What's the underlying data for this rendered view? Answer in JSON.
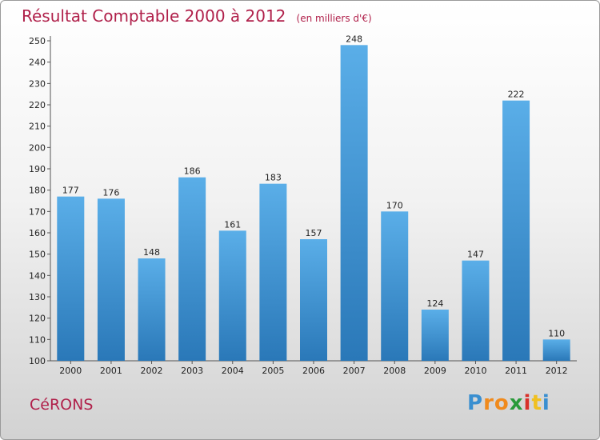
{
  "chart_data": {
    "type": "bar",
    "title": "Résultat Comptable 2000 à 2012",
    "subtitle": "(en milliers d'€)",
    "categories": [
      "2000",
      "2001",
      "2002",
      "2003",
      "2004",
      "2005",
      "2006",
      "2007",
      "2008",
      "2009",
      "2010",
      "2011",
      "2012"
    ],
    "values": [
      177,
      176,
      148,
      186,
      161,
      183,
      157,
      248,
      170,
      124,
      147,
      222,
      110
    ],
    "ylim": [
      100,
      250
    ],
    "yticks": [
      100,
      110,
      120,
      130,
      140,
      150,
      160,
      170,
      180,
      190,
      200,
      210,
      220,
      230,
      240,
      250
    ],
    "xlabel": "",
    "ylabel": "",
    "grid": false,
    "bar_color_top": "#5aaee8",
    "bar_color_bottom": "#2a78b8"
  },
  "commune": "CéRONS",
  "logo": {
    "letters": [
      "P",
      "r",
      "o",
      "x",
      "i",
      "t",
      "i"
    ],
    "colors": [
      "#3a8fd0",
      "#f08a1c",
      "#f08a1c",
      "#2a9a3a",
      "#d8302a",
      "#f0c020",
      "#3a8fd0"
    ]
  },
  "colors": {
    "title": "#b0204a",
    "axis": "#555555"
  }
}
